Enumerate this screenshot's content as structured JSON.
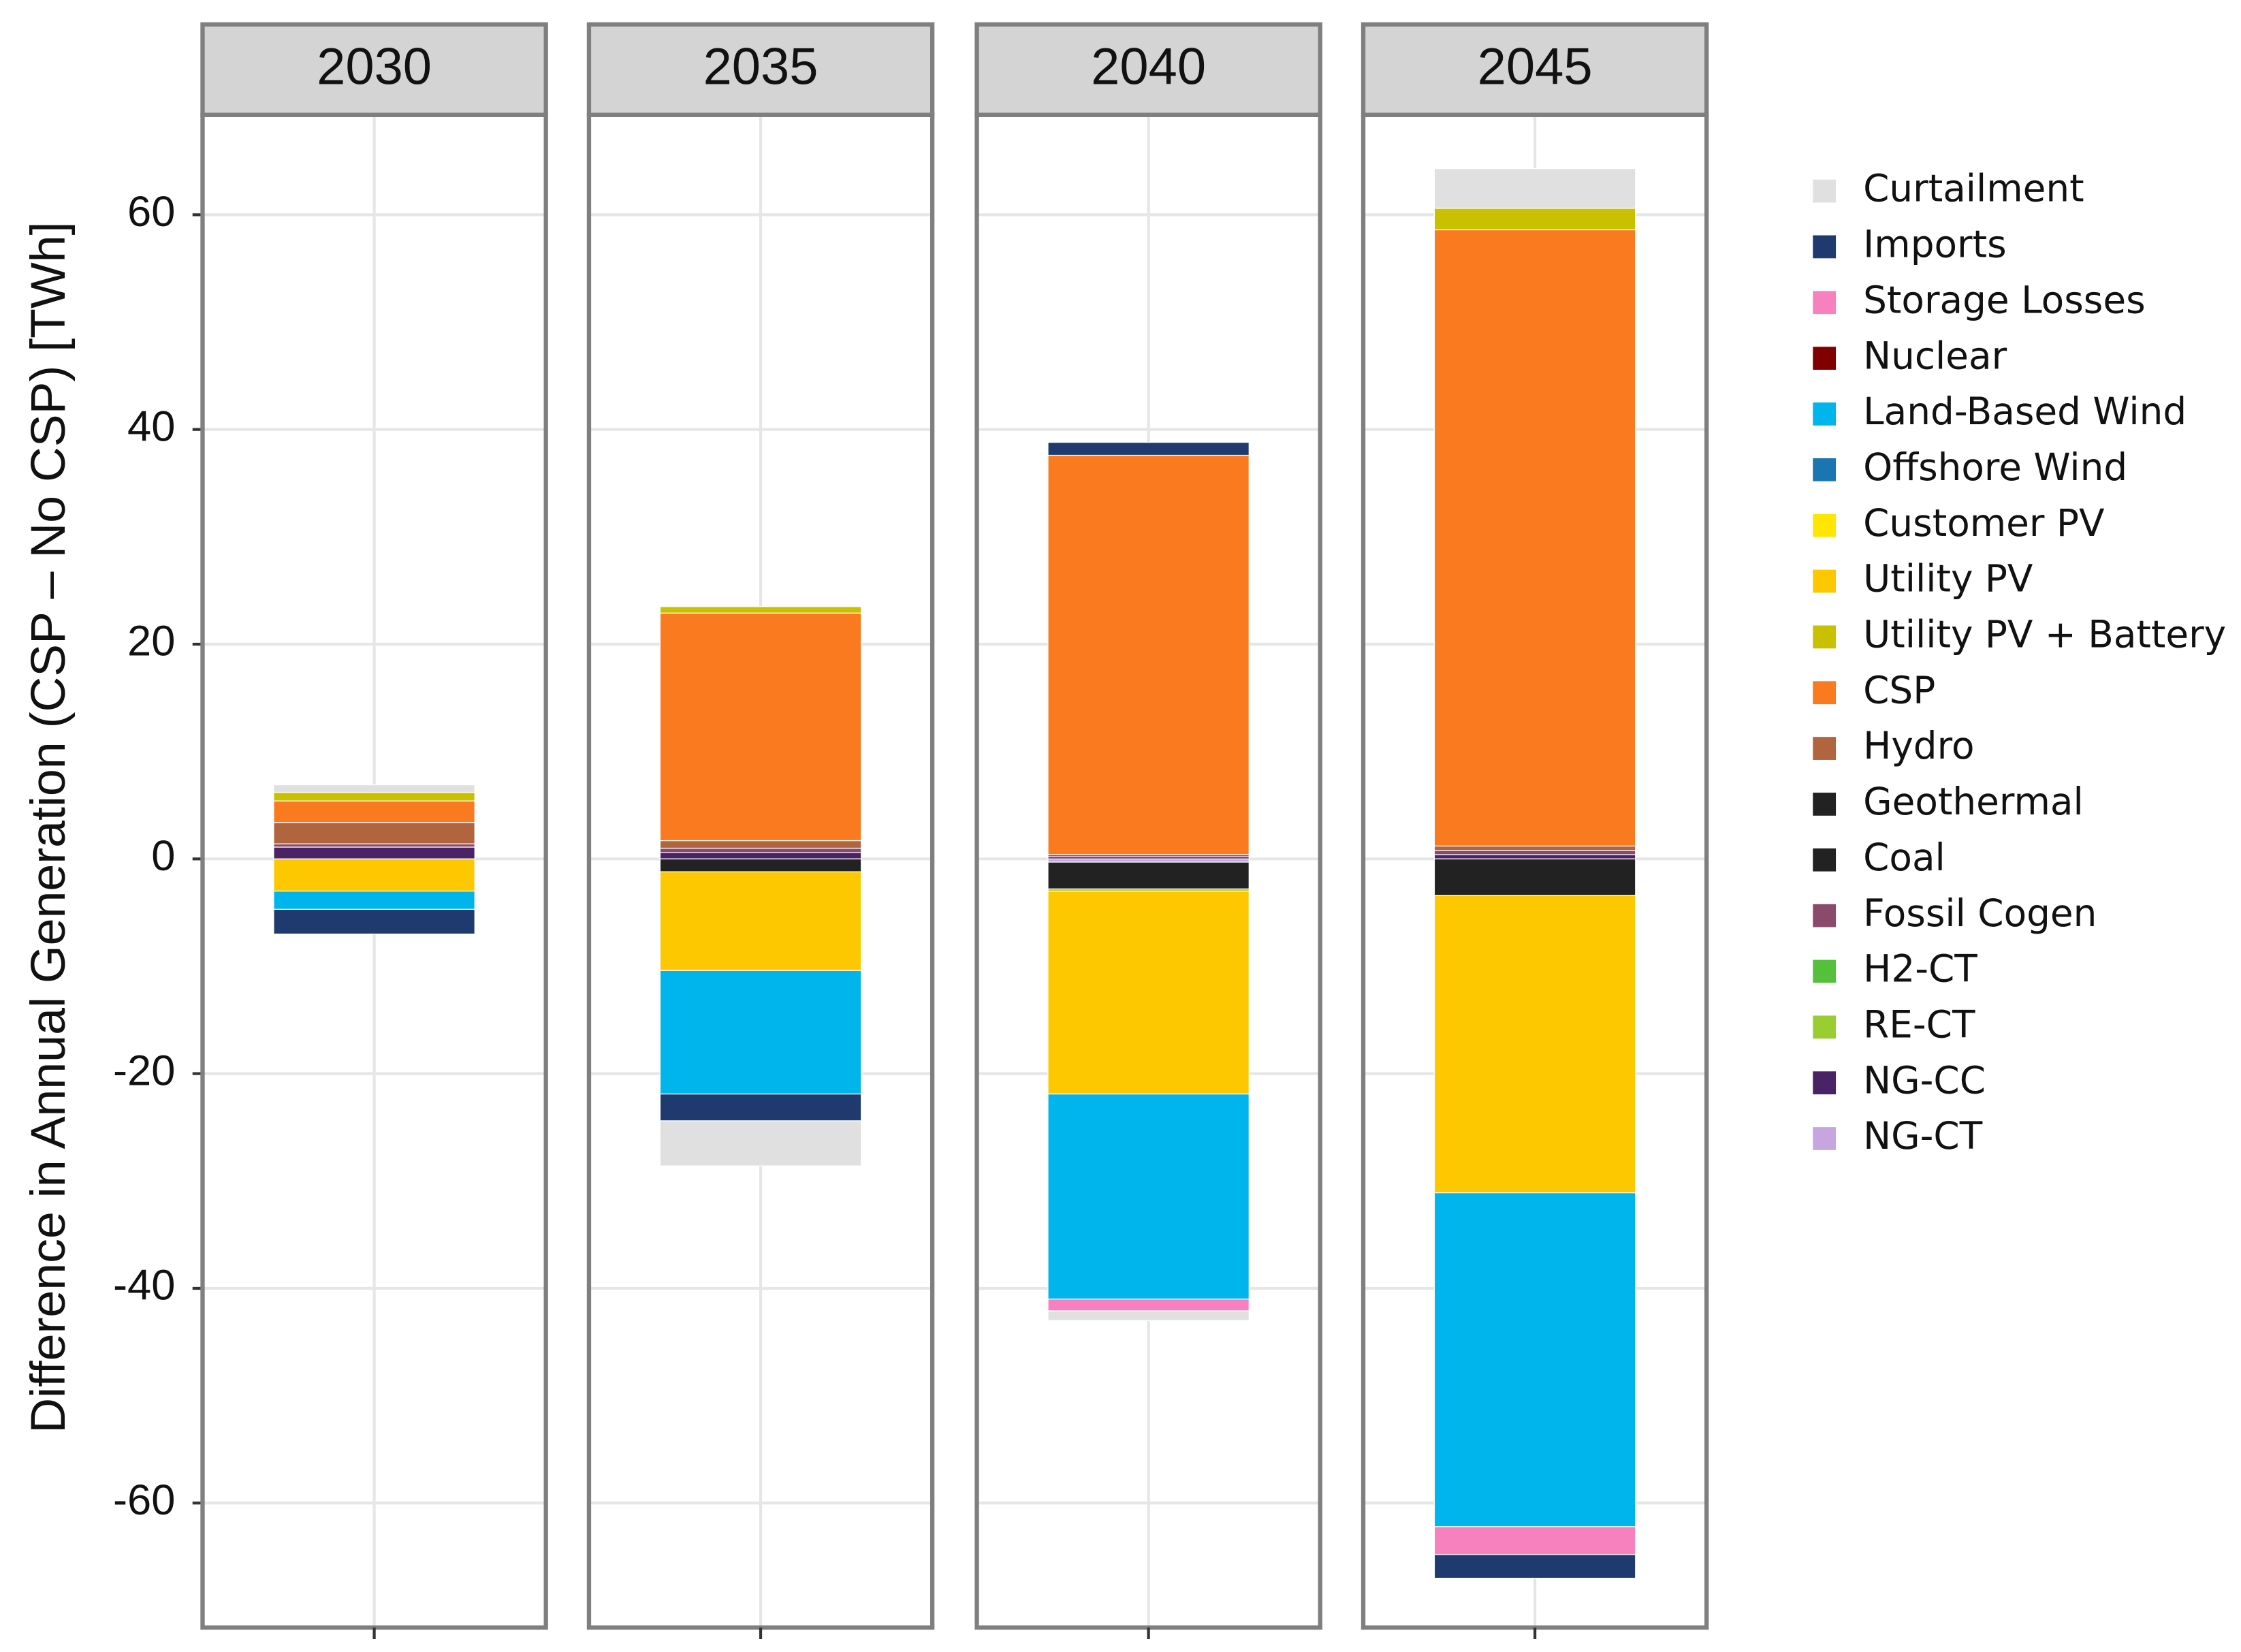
{
  "chart_data": {
    "type": "stacked-bar-facets",
    "y_label": "Difference in Annual Generation (CSP – No CSP) [TWh]",
    "categories": [
      "2030",
      "2035",
      "2040",
      "2045"
    ],
    "ylim": [
      -71.6,
      69.3
    ],
    "yticks": [
      -60,
      -40,
      -20,
      0,
      20,
      40,
      60
    ],
    "grid": true,
    "series": [
      {
        "name": "Curtailment",
        "color": "#e0e0e0",
        "values": [
          0.7,
          -4.2,
          -0.9,
          3.7
        ]
      },
      {
        "name": "Imports",
        "color": "#1f3a6e",
        "values": [
          -2.3,
          -2.5,
          1.2,
          -2.2
        ]
      },
      {
        "name": "Storage Losses",
        "color": "#f781bf",
        "values": [
          0,
          0,
          -1.1,
          -2.6
        ]
      },
      {
        "name": "Nuclear",
        "color": "#800000",
        "values": [
          0,
          0,
          0,
          0
        ]
      },
      {
        "name": "Land-Based Wind",
        "color": "#00b4ec",
        "values": [
          -1.7,
          -11.5,
          -19.1,
          -31.1
        ]
      },
      {
        "name": "Offshore Wind",
        "color": "#1a75b0",
        "values": [
          0,
          0,
          0,
          0
        ]
      },
      {
        "name": "Customer PV",
        "color": "#ffe600",
        "values": [
          0,
          0,
          0,
          0
        ]
      },
      {
        "name": "Utility PV",
        "color": "#fdc800",
        "values": [
          -3.0,
          -9.2,
          -18.9,
          -27.7
        ]
      },
      {
        "name": "Utility PV + Battery",
        "color": "#c9c000",
        "values": [
          0.8,
          0.6,
          -0.2,
          2.0
        ]
      },
      {
        "name": "CSP",
        "color": "#f97a1f",
        "values": [
          2.0,
          21.2,
          37.2,
          57.4
        ]
      },
      {
        "name": "Hydro",
        "color": "#b0653e",
        "values": [
          2.0,
          0.7,
          0,
          0.4
        ]
      },
      {
        "name": "Geothermal",
        "color": "#222222",
        "values": [
          0,
          0,
          0,
          0
        ]
      },
      {
        "name": "Coal",
        "color": "#222222",
        "values": [
          0,
          -1.2,
          -2.5,
          -3.4
        ]
      },
      {
        "name": "Fossil Cogen",
        "color": "#8b4a6b",
        "values": [
          0.3,
          0.4,
          0.2,
          0.4
        ]
      },
      {
        "name": "H2-CT",
        "color": "#55c03c",
        "values": [
          0,
          0,
          0,
          0
        ]
      },
      {
        "name": "RE-CT",
        "color": "#9acd32",
        "values": [
          0,
          0,
          0,
          0
        ]
      },
      {
        "name": "NG-CC",
        "color": "#4a2266",
        "values": [
          1.1,
          0.6,
          0.2,
          0.4
        ]
      },
      {
        "name": "NG-CT",
        "color": "#c7a6e0",
        "values": [
          0,
          0,
          -0.3,
          0
        ]
      }
    ]
  }
}
